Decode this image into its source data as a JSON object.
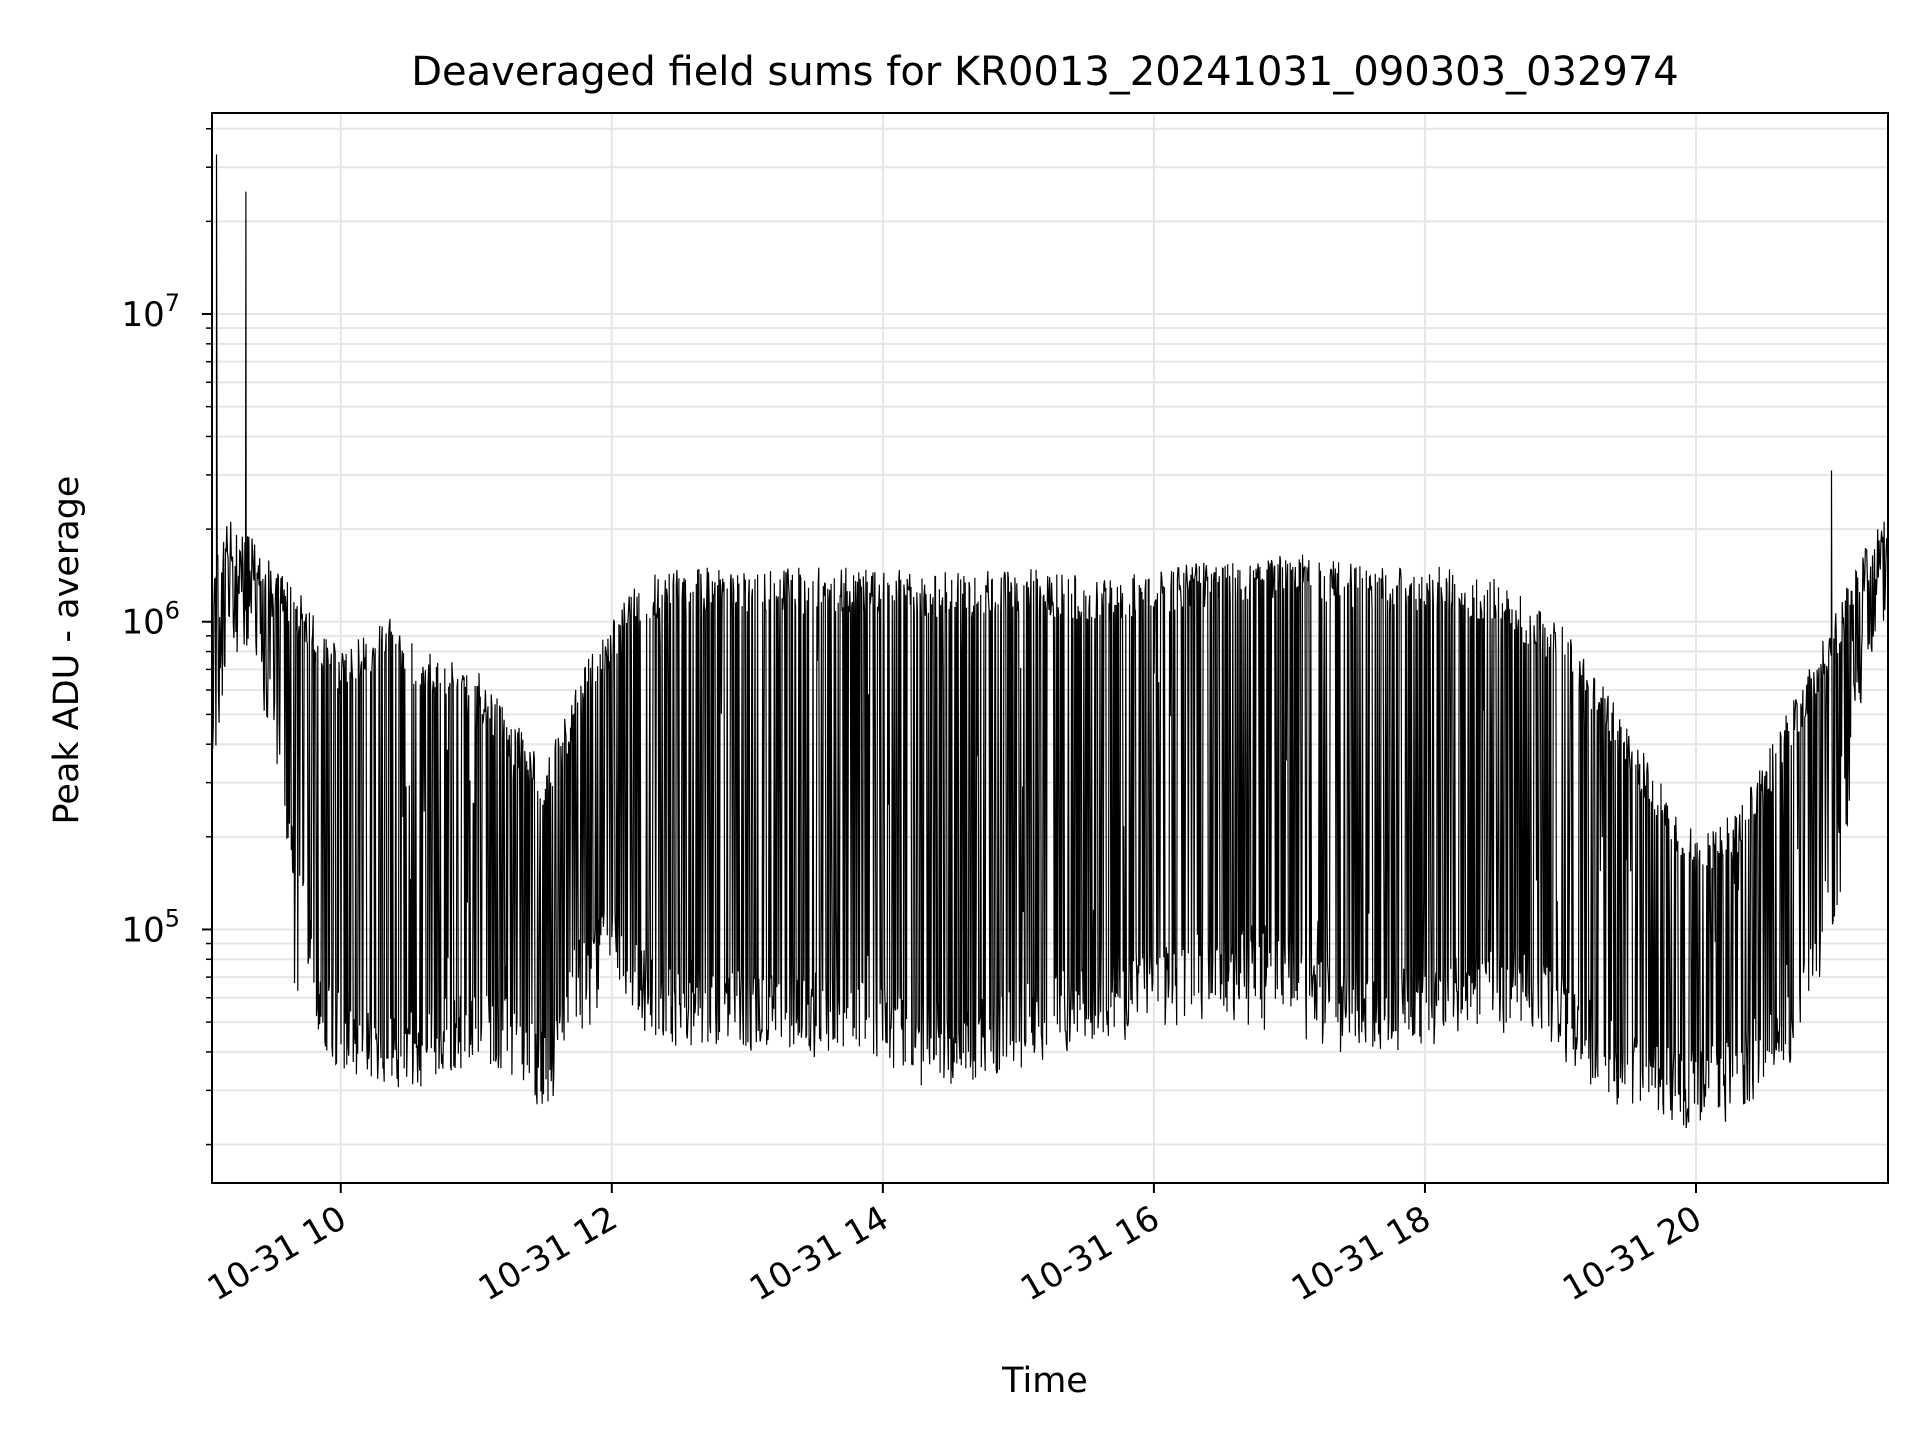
{
  "chart_data": {
    "type": "line",
    "title": "Deaveraged field sums for KR0013_20241031_090303_032974",
    "xlabel": "Time",
    "ylabel": "Peak ADU - average",
    "yscale": "log",
    "grid": true,
    "x_ticks": [
      "10-31 10",
      "10-31 12",
      "10-31 14",
      "10-31 16",
      "10-31 18",
      "10-31 20"
    ],
    "y_ticks": [
      {
        "value": 100000,
        "base": "10",
        "exp": "5"
      },
      {
        "value": 1000000,
        "base": "10",
        "exp": "6"
      },
      {
        "value": 10000000,
        "base": "10",
        "exp": "7"
      }
    ],
    "xlim": [
      "2024-10-31 09:03",
      "2024-10-31 21:25"
    ],
    "ylim": [
      15000,
      45000000
    ],
    "colors": {
      "line": "#000000",
      "grid": "#e6e6e6",
      "axes": "#000000"
    },
    "series": [
      {
        "color": "#000000",
        "spikes": [
          {
            "x": "2024-10-31 09:05",
            "y": 33000000
          },
          {
            "x": "2024-10-31 09:18",
            "y": 25000000
          },
          {
            "x": "2024-10-31 21:00",
            "y": 3100000
          }
        ],
        "envelope": {
          "x": [
            "2024-10-31 09:03",
            "2024-10-31 09:10",
            "2024-10-31 09:20",
            "2024-10-31 09:30",
            "2024-10-31 09:40",
            "2024-10-31 09:50",
            "2024-10-31 10:00",
            "2024-10-31 10:10",
            "2024-10-31 10:20",
            "2024-10-31 10:30",
            "2024-10-31 10:45",
            "2024-10-31 11:00",
            "2024-10-31 11:15",
            "2024-10-31 11:30",
            "2024-10-31 11:40",
            "2024-10-31 11:50",
            "2024-10-31 12:00",
            "2024-10-31 12:10",
            "2024-10-31 12:20",
            "2024-10-31 12:30",
            "2024-10-31 13:00",
            "2024-10-31 13:30",
            "2024-10-31 14:00",
            "2024-10-31 14:20",
            "2024-10-31 14:40",
            "2024-10-31 15:00",
            "2024-10-31 15:20",
            "2024-10-31 15:40",
            "2024-10-31 16:00",
            "2024-10-31 16:30",
            "2024-10-31 17:00",
            "2024-10-31 17:20",
            "2024-10-31 17:40",
            "2024-10-31 18:00",
            "2024-10-31 18:30",
            "2024-10-31 19:00",
            "2024-10-31 19:20",
            "2024-10-31 19:40",
            "2024-10-31 20:00",
            "2024-10-31 20:20",
            "2024-10-31 20:40",
            "2024-10-31 21:00",
            "2024-10-31 21:15",
            "2024-10-31 21:25"
          ],
          "low": [
            400000,
            900000,
            1000000,
            500000,
            150000,
            60000,
            45000,
            45000,
            40000,
            40000,
            45000,
            50000,
            45000,
            35000,
            60000,
            80000,
            90000,
            70000,
            60000,
            55000,
            55000,
            55000,
            50000,
            45000,
            42000,
            50000,
            55000,
            60000,
            70000,
            80000,
            75000,
            60000,
            55000,
            60000,
            70000,
            55000,
            40000,
            32000,
            30000,
            35000,
            45000,
            120000,
            900000,
            1400000
          ],
          "high": [
            1500000,
            2200000,
            2000000,
            1500000,
            1300000,
            1000000,
            800000,
            900000,
            1100000,
            900000,
            800000,
            700000,
            500000,
            350000,
            500000,
            800000,
            1000000,
            1300000,
            1450000,
            1500000,
            1500000,
            1500000,
            1500000,
            1450000,
            1450000,
            1500000,
            1450000,
            1400000,
            1500000,
            1600000,
            1700000,
            1600000,
            1500000,
            1550000,
            1400000,
            1000000,
            600000,
            350000,
            200000,
            250000,
            500000,
            1000000,
            1800000,
            2200000
          ],
          "min": [
            380000,
            850000,
            900000,
            300000,
            60000,
            35000,
            30000,
            32000,
            30000,
            30000,
            32000,
            35000,
            30000,
            22000,
            40000,
            45000,
            50000,
            42000,
            40000,
            40000,
            40000,
            38000,
            35000,
            30000,
            30000,
            35000,
            40000,
            40000,
            45000,
            50000,
            45000,
            40000,
            38000,
            40000,
            45000,
            38000,
            28000,
            23000,
            21000,
            25000,
            35000,
            80000,
            500000,
            1200000
          ]
        }
      }
    ]
  }
}
